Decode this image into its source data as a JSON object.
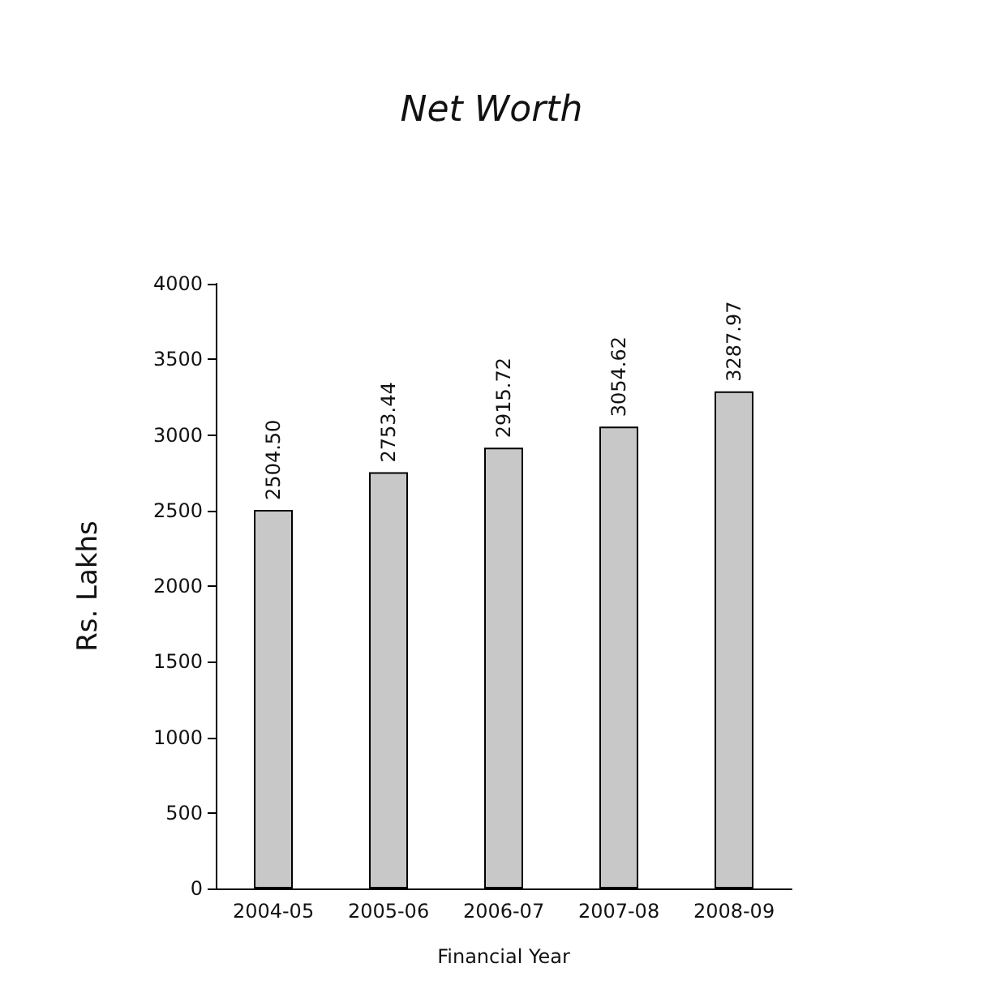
{
  "chart_data": {
    "type": "bar",
    "title": "Net Worth",
    "xlabel": "Financial Year",
    "ylabel": "Rs. Lakhs",
    "categories": [
      "2004-05",
      "2005-06",
      "2006-07",
      "2007-08",
      "2008-09"
    ],
    "values": [
      2504.5,
      2753.44,
      2915.72,
      3054.62,
      3287.97
    ],
    "value_labels": [
      "2504.50",
      "2753.44",
      "2915.72",
      "3054.62",
      "3287.97"
    ],
    "color": "#c8c8c8",
    "ylim": [
      0,
      4000
    ],
    "yticks": [
      0,
      500,
      1000,
      1500,
      2000,
      2500,
      3000,
      3500,
      4000
    ]
  }
}
